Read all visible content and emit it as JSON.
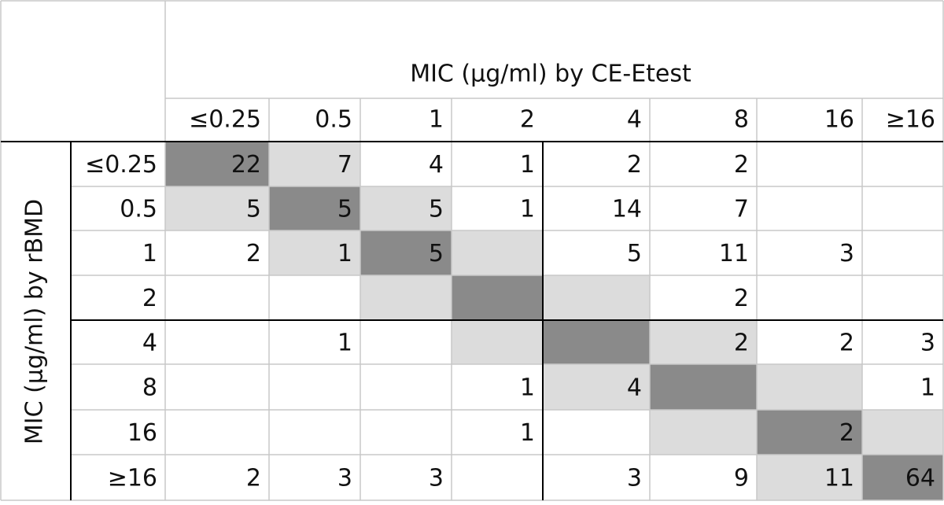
{
  "table": {
    "column_title": "MIC (µg/ml) by CE-Etest",
    "row_title": "MIC (µg/ml) by rBMD",
    "columns": [
      "≤0.25",
      "0.5",
      "1",
      "2",
      "4",
      "8",
      "16",
      "≥16"
    ],
    "rows": [
      {
        "label": "≤0.25",
        "cells": [
          22,
          7,
          4,
          1,
          2,
          2,
          null,
          null
        ]
      },
      {
        "label": "0.5",
        "cells": [
          5,
          5,
          5,
          1,
          14,
          7,
          null,
          null
        ]
      },
      {
        "label": "1",
        "cells": [
          2,
          1,
          5,
          null,
          5,
          11,
          3,
          null
        ]
      },
      {
        "label": "2",
        "cells": [
          null,
          null,
          null,
          null,
          null,
          2,
          null,
          null
        ]
      },
      {
        "label": "4",
        "cells": [
          null,
          1,
          null,
          null,
          null,
          2,
          2,
          3
        ]
      },
      {
        "label": "8",
        "cells": [
          null,
          null,
          null,
          1,
          4,
          null,
          null,
          1
        ]
      },
      {
        "label": "16",
        "cells": [
          null,
          null,
          null,
          1,
          null,
          null,
          2,
          null
        ]
      },
      {
        "label": "≥16",
        "cells": [
          2,
          3,
          3,
          null,
          3,
          9,
          11,
          64
        ]
      }
    ]
  }
}
